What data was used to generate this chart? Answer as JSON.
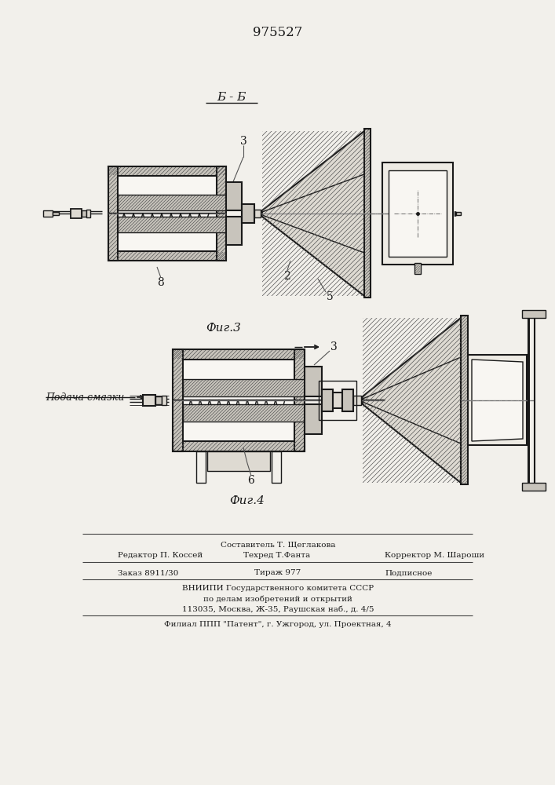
{
  "patent_number": "975527",
  "fig3_label": "Фиг.3",
  "fig4_label": "Фиг.4",
  "section_label": "Б - Б",
  "podacha_label": "Подача смазки",
  "footer_lines": [
    "Составитель Т. Щеглакова",
    "Редактор П. Коссей      Техред Т.Фанта           Корректор М. Шароши",
    "Заказ 8911/30               Тираж 977                    Подписное",
    "ВНИИПИ Государственного комитета СССР",
    "по делам изобретений и открытий",
    "113035, Москва, Ж-35, Раушская наб., д. 4/5",
    "Филиал ППП \"Патент\", г. Ужгород, ул. Проектная, 4"
  ],
  "bg_color": "#f2f0eb",
  "line_color": "#1a1a1a"
}
